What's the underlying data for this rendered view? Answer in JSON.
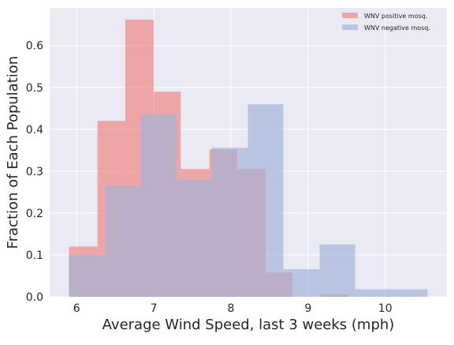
{
  "chart_data": {
    "type": "bar",
    "subtype": "overlapping-histogram",
    "title": "",
    "xlabel": "Average Wind Speed, last 3 weeks (mph)",
    "ylabel": "Fraction of Each Population",
    "xlim": [
      5.65,
      10.8
    ],
    "ylim": [
      0,
      0.69
    ],
    "x_ticks": [
      6,
      7,
      8,
      9,
      10
    ],
    "y_ticks": [
      0.0,
      0.1,
      0.2,
      0.3,
      0.4,
      0.5,
      0.6
    ],
    "grid": true,
    "legend_position": "top-right",
    "series": [
      {
        "name": "WNV positive mosq.",
        "color": "#f08080",
        "opacity": 0.65,
        "bins": [
          {
            "x0": 5.9,
            "x1": 6.27,
            "value": 0.12
          },
          {
            "x0": 6.27,
            "x1": 6.63,
            "value": 0.42
          },
          {
            "x0": 6.63,
            "x1": 7.0,
            "value": 0.662
          },
          {
            "x0": 7.0,
            "x1": 7.35,
            "value": 0.49
          },
          {
            "x0": 7.35,
            "x1": 7.72,
            "value": 0.305
          },
          {
            "x0": 7.72,
            "x1": 8.08,
            "value": 0.352
          },
          {
            "x0": 8.08,
            "x1": 8.45,
            "value": 0.305
          },
          {
            "x0": 8.45,
            "x1": 8.8,
            "value": 0.058
          },
          {
            "x0": 8.8,
            "x1": 9.17,
            "value": 0.0
          },
          {
            "x0": 9.17,
            "x1": 9.53,
            "value": 0.006
          }
        ]
      },
      {
        "name": "WNV negative mosq.",
        "color": "#9fb2d7",
        "opacity": 0.65,
        "bins": [
          {
            "x0": 5.9,
            "x1": 6.37,
            "value": 0.1
          },
          {
            "x0": 6.37,
            "x1": 6.83,
            "value": 0.265
          },
          {
            "x0": 6.83,
            "x1": 7.3,
            "value": 0.436
          },
          {
            "x0": 7.3,
            "x1": 7.75,
            "value": 0.28
          },
          {
            "x0": 7.75,
            "x1": 8.22,
            "value": 0.356
          },
          {
            "x0": 8.22,
            "x1": 8.68,
            "value": 0.46
          },
          {
            "x0": 8.68,
            "x1": 9.15,
            "value": 0.066
          },
          {
            "x0": 9.15,
            "x1": 9.61,
            "value": 0.125
          },
          {
            "x0": 9.61,
            "x1": 10.08,
            "value": 0.018
          },
          {
            "x0": 10.08,
            "x1": 10.55,
            "value": 0.018
          }
        ]
      }
    ]
  }
}
